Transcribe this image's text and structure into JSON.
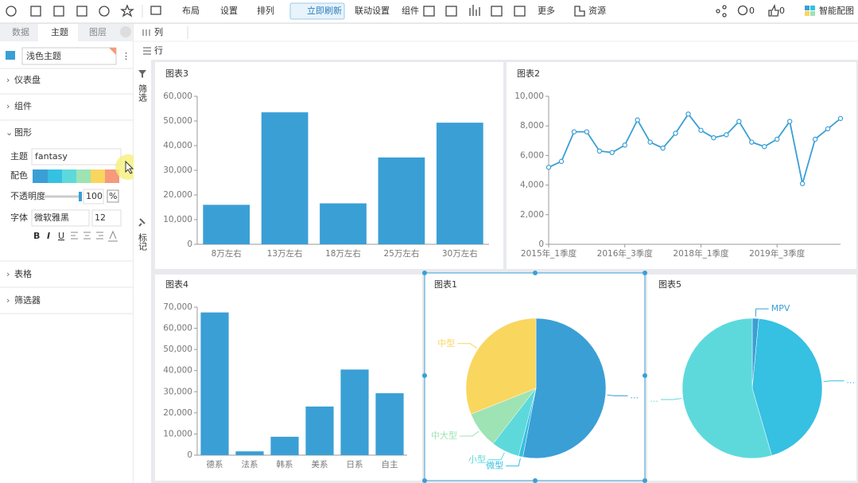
{
  "toolbar": {
    "layout": "布局",
    "settings": "设置",
    "arrange": "排列",
    "refresh": "立即刷新",
    "linkage": "联动设置",
    "components": "组件",
    "more": "更多",
    "resources": "资源",
    "comments": "0",
    "likes": "0",
    "smart_chart": "智能配图"
  },
  "tabs": [
    "数据",
    "主题",
    "图层"
  ],
  "shelves": {
    "columns": "列",
    "rows": "行"
  },
  "side_strip": {
    "filter": "筛选",
    "mark": "标记"
  },
  "panel": {
    "theme_preset": "浅色主题",
    "sections": [
      "仪表盘",
      "组件",
      "图形",
      "表格",
      "筛选器"
    ],
    "theme_label": "主题",
    "theme_value": "fantasy",
    "palette_label": "配色",
    "opacity_label": "不透明度",
    "opacity_value": "100",
    "percent": "%",
    "font_label": "字体",
    "font_value": "微软雅黑",
    "font_size": "12",
    "format_buttons": [
      "B",
      "I",
      "U"
    ]
  },
  "chart_data": [
    {
      "type": "bar",
      "title": "图表3",
      "categories": [
        "8万左右",
        "13万左右",
        "18万左右",
        "25万左右",
        "30万左右"
      ],
      "values": [
        16000,
        53500,
        16600,
        35200,
        49300
      ],
      "color": "#3a9fd5",
      "ylim": [
        0,
        60000
      ],
      "yticks": [
        0,
        {
          "value": 10000,
          "label": "10,000"
        },
        {
          "value": 20000,
          "label": "20,000"
        },
        {
          "value": 30000,
          "label": "30,000"
        },
        {
          "value": 40000,
          "label": "40,000"
        },
        {
          "value": 50000,
          "label": "50,000"
        },
        {
          "value": 60000,
          "label": "60,000"
        }
      ]
    },
    {
      "type": "line",
      "title": "图表2",
      "categories": [
        "2015年_1季度",
        null,
        null,
        null,
        null,
        null,
        "2016年_3季度",
        null,
        null,
        null,
        null,
        null,
        "2018年_1季度",
        null,
        null,
        null,
        null,
        null,
        "2019年_3季度",
        null,
        null,
        null,
        null,
        null
      ],
      "values": [
        5200,
        5600,
        7600,
        7600,
        6300,
        6200,
        6700,
        8400,
        6900,
        6500,
        7500,
        8800,
        7700,
        7200,
        7400,
        8300,
        6900,
        6600,
        7100,
        8300,
        4100,
        7100,
        7800,
        8500
      ],
      "color": "#3a9fd5",
      "ylim": [
        0,
        10000
      ],
      "yticks": [
        0,
        {
          "value": 2000,
          "label": "2,000"
        },
        {
          "value": 4000,
          "label": "4,000"
        },
        {
          "value": 6000,
          "label": "6,000"
        },
        {
          "value": 8000,
          "label": "8,000"
        },
        {
          "value": 10000,
          "label": "10,000"
        }
      ]
    },
    {
      "type": "bar",
      "title": "图表4",
      "categories": [
        "德系",
        "法系",
        "韩系",
        "美系",
        "日系",
        "自主"
      ],
      "values": [
        67500,
        1800,
        8700,
        23000,
        40500,
        29300
      ],
      "color": "#3a9fd5",
      "ylim": [
        0,
        70000
      ],
      "yticks": [
        0,
        {
          "value": 10000,
          "label": "10,000"
        },
        {
          "value": 20000,
          "label": "20,000"
        },
        {
          "value": 30000,
          "label": "30,000"
        },
        {
          "value": 40000,
          "label": "40,000"
        },
        {
          "value": 50000,
          "label": "50,000"
        },
        {
          "value": 60000,
          "label": "60,000"
        },
        {
          "value": 70000,
          "label": "70,000"
        }
      ]
    },
    {
      "type": "pie",
      "title": "图表1",
      "categories": [
        "...",
        "微型",
        "小型",
        "中大型",
        "中型"
      ],
      "values": [
        53,
        1,
        6.5,
        8.5,
        31
      ],
      "colors": [
        "#3a9fd5",
        "#36c0e2",
        "#5dd9dc",
        "#9ee3b4",
        "#f9d65e"
      ]
    },
    {
      "type": "pie",
      "title": "图表5",
      "categories": [
        "MPV",
        "...",
        "..."
      ],
      "values": [
        1.5,
        44,
        54.5
      ],
      "colors": [
        "#3a9fd5",
        "#36c0e2",
        "#5dd9dc"
      ]
    }
  ]
}
